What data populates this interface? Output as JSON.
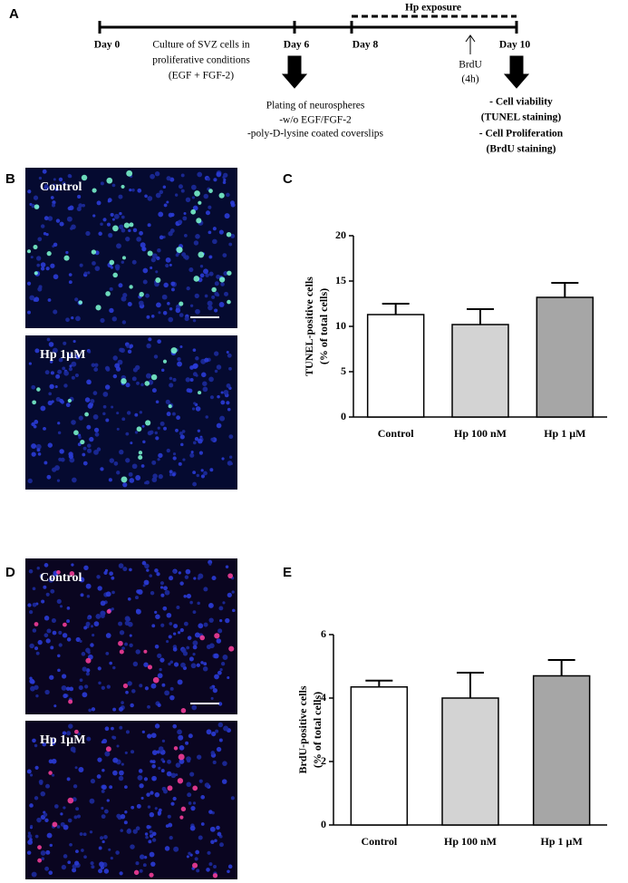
{
  "panels": [
    "A",
    "B",
    "C",
    "D",
    "E"
  ],
  "timeline": {
    "exposure": "Hp exposure",
    "days": [
      "Day 0",
      "Day 6",
      "Day 8",
      "Day 10"
    ],
    "culture": [
      "Culture of SVZ cells in",
      "proliferative conditions",
      "(EGF + FGF-2)"
    ],
    "plating": [
      "Plating of neurospheres",
      "-w/o EGF/FGF-2",
      "-poly-D-lysine coated coverslips"
    ],
    "brdu": [
      "BrdU",
      "(4h)"
    ],
    "readouts": [
      "- Cell viability",
      "(TUNEL staining)",
      "- Cell Proliferation",
      "(BrdU staining)"
    ]
  },
  "micrographs": [
    {
      "label": "Control"
    },
    {
      "label": "Hp 1µM"
    },
    {
      "label": "Control"
    },
    {
      "label": "Hp 1µM"
    }
  ],
  "chart_data": [
    {
      "type": "bar",
      "ylabel": [
        "TUNEL-positive cells",
        "(% of total cells)"
      ],
      "categories": [
        "Control",
        "Hp 100 nM",
        "Hp 1 µM"
      ],
      "values": [
        11.3,
        10.2,
        13.2
      ],
      "errors": [
        1.2,
        1.7,
        1.6
      ],
      "colors": [
        "#ffffff",
        "#d3d3d3",
        "#a6a6a6"
      ],
      "ylim": [
        0,
        20
      ],
      "yticks": [
        0,
        5,
        10,
        15,
        20
      ]
    },
    {
      "type": "bar",
      "ylabel": [
        "BrdU-positive cells",
        "(% of total cells)"
      ],
      "categories": [
        "Control",
        "Hp 100 nM",
        "Hp 1 µM"
      ],
      "values": [
        4.35,
        4.0,
        4.7
      ],
      "errors": [
        0.2,
        0.8,
        0.5
      ],
      "colors": [
        "#ffffff",
        "#d3d3d3",
        "#a6a6a6"
      ],
      "ylim": [
        0,
        6
      ],
      "yticks": [
        0,
        2,
        4,
        6
      ]
    }
  ]
}
